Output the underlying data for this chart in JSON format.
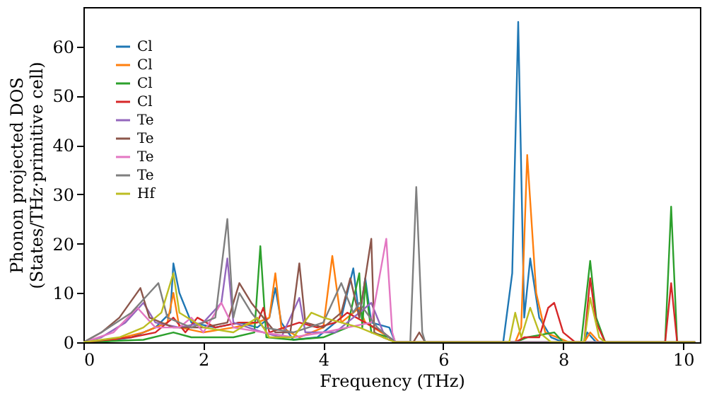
{
  "chart_data": {
    "type": "line",
    "xlabel": "Frequency (THz)",
    "ylabel": "Phonon projected DOS\n(States/THz·primitive cell)",
    "xlim": [
      0,
      10.28
    ],
    "ylim": [
      0,
      68
    ],
    "xticks": [
      0,
      2,
      4,
      6,
      8,
      10
    ],
    "yticks": [
      0,
      10,
      20,
      30,
      40,
      50,
      60
    ],
    "legend": "top left",
    "grid": false,
    "marker": "none",
    "line_style": "solid",
    "series": [
      {
        "name": "Cl",
        "color": "#1f77b4",
        "x": [
          0,
          0.3,
          0.8,
          1.2,
          1.45,
          1.5,
          1.6,
          1.8,
          2.2,
          2.6,
          2.9,
          3.1,
          3.2,
          3.3,
          3.5,
          3.9,
          4.3,
          4.5,
          4.6,
          4.7,
          4.8,
          5.1,
          5.2,
          7.0,
          7.15,
          7.25,
          7.35,
          7.45,
          7.6,
          7.8,
          8.0,
          8.35,
          8.4,
          8.55,
          10.2
        ],
        "values": [
          0,
          0,
          1,
          3,
          6,
          16,
          10,
          4,
          3,
          4,
          3,
          5,
          11,
          4,
          0.5,
          1,
          5,
          15,
          5,
          13,
          4,
          3,
          0,
          0,
          14,
          65,
          5,
          17,
          5,
          1,
          0,
          0,
          2,
          0,
          0
        ]
      },
      {
        "name": "Cl",
        "color": "#ff7f0e",
        "x": [
          0,
          0.5,
          1.0,
          1.4,
          1.5,
          1.6,
          2.0,
          2.5,
          2.9,
          3.1,
          3.2,
          3.3,
          3.6,
          4.0,
          4.15,
          4.3,
          4.6,
          4.7,
          5.1,
          5.2,
          7.2,
          7.3,
          7.4,
          7.55,
          7.7,
          7.9,
          8.1,
          8.35,
          8.45,
          8.6,
          10.2
        ],
        "values": [
          0,
          0.5,
          2,
          4,
          10,
          3,
          2,
          3,
          4,
          5,
          14,
          3,
          1,
          3,
          17.5,
          4,
          7,
          4,
          1,
          0,
          0,
          3,
          38,
          10,
          2,
          1,
          0,
          0,
          2,
          0,
          0
        ]
      },
      {
        "name": "Cl",
        "color": "#2ca02c",
        "x": [
          0,
          1.0,
          1.5,
          1.8,
          2.5,
          2.85,
          2.95,
          3.05,
          3.5,
          4.0,
          4.4,
          4.6,
          4.65,
          4.7,
          4.8,
          5.1,
          5.2,
          7.2,
          7.4,
          7.85,
          8.0,
          8.3,
          8.45,
          8.55,
          8.7,
          9.7,
          9.8,
          9.9,
          10.2
        ],
        "values": [
          0,
          0.5,
          2,
          1,
          1,
          2,
          19.5,
          1,
          0.5,
          1,
          3,
          14,
          3,
          12,
          2,
          1,
          0,
          0,
          1,
          2,
          0,
          0,
          16.5,
          5,
          0,
          0,
          27.5,
          0,
          0
        ]
      },
      {
        "name": "Cl",
        "color": "#d62728",
        "x": [
          0,
          0.8,
          1.2,
          1.5,
          1.7,
          1.9,
          2.2,
          2.6,
          2.9,
          3.0,
          3.1,
          3.6,
          3.9,
          4.2,
          4.4,
          4.7,
          5.0,
          5.2,
          7.2,
          7.35,
          7.6,
          7.75,
          7.85,
          8.0,
          8.2,
          8.35,
          8.45,
          8.55,
          8.7,
          9.7,
          9.8,
          9.9,
          10.2
        ],
        "values": [
          0,
          1,
          2,
          5,
          2,
          5,
          3,
          4,
          4,
          7,
          2,
          4,
          3,
          4,
          6,
          4,
          2,
          0,
          0,
          1,
          1,
          7,
          8,
          2,
          0,
          0,
          13,
          4,
          0,
          0,
          12,
          0,
          0
        ]
      },
      {
        "name": "Te",
        "color": "#9467bd",
        "x": [
          0,
          0.3,
          0.7,
          1.0,
          1.2,
          1.6,
          2.0,
          2.3,
          2.4,
          2.5,
          3.0,
          3.3,
          3.6,
          3.7,
          4.2,
          4.5,
          4.8,
          5.0,
          5.2,
          10.2
        ],
        "values": [
          0,
          1,
          4,
          8,
          4,
          3,
          4,
          8,
          17,
          4,
          2,
          1,
          9,
          2,
          2,
          5,
          8,
          2,
          0,
          0
        ]
      },
      {
        "name": "Te",
        "color": "#8c564b",
        "x": [
          0,
          0.3,
          0.6,
          0.95,
          1.1,
          1.5,
          2.0,
          2.4,
          2.6,
          2.8,
          3.0,
          3.2,
          3.45,
          3.6,
          3.7,
          4.0,
          4.3,
          4.45,
          4.6,
          4.8,
          4.85,
          5.0,
          5.2,
          5.5,
          5.6,
          5.7,
          10.2
        ],
        "values": [
          0,
          2,
          5,
          11,
          5,
          3,
          3,
          4,
          12,
          8,
          5,
          2,
          2,
          16,
          4,
          3,
          6,
          13,
          5,
          21,
          2,
          1,
          0,
          0,
          2,
          0,
          0
        ]
      },
      {
        "name": "Te",
        "color": "#e377c2",
        "x": [
          0,
          0.5,
          0.9,
          1.2,
          1.6,
          1.8,
          2.0,
          2.3,
          2.5,
          3.0,
          3.5,
          4.0,
          4.4,
          4.8,
          5.05,
          5.15,
          5.2,
          10.2
        ],
        "values": [
          0,
          2,
          7,
          3,
          3,
          5,
          2,
          8,
          3,
          2,
          1,
          2,
          3,
          4,
          21,
          2,
          0,
          0
        ]
      },
      {
        "name": "Te",
        "color": "#7f7f7f",
        "x": [
          0,
          0.3,
          0.8,
          1.1,
          1.25,
          1.4,
          1.8,
          2.2,
          2.4,
          2.5,
          2.6,
          2.8,
          3.0,
          3.5,
          4.0,
          4.3,
          4.5,
          4.6,
          4.9,
          5.2,
          5.45,
          5.55,
          5.65,
          5.7,
          10.2
        ],
        "values": [
          0,
          2,
          6,
          10,
          12,
          5,
          3,
          5,
          25,
          5,
          10,
          6,
          3,
          2,
          4,
          12,
          6,
          8,
          3,
          0,
          0,
          31.5,
          2,
          0,
          0
        ]
      },
      {
        "name": "Hf",
        "color": "#bcbd22",
        "x": [
          0,
          0.6,
          1.0,
          1.3,
          1.5,
          1.6,
          2.0,
          2.5,
          2.9,
          3.1,
          3.5,
          3.8,
          4.0,
          4.3,
          4.6,
          5.0,
          5.2,
          7.1,
          7.2,
          7.3,
          7.45,
          7.6,
          7.8,
          8.35,
          8.45,
          8.6,
          8.7,
          10.2
        ],
        "values": [
          0,
          1,
          3,
          6,
          14,
          6,
          3,
          2,
          5,
          1,
          1,
          6,
          5,
          4,
          3,
          1,
          0,
          0,
          6,
          1,
          7,
          2,
          0,
          0,
          9,
          1,
          0,
          0
        ]
      }
    ]
  }
}
